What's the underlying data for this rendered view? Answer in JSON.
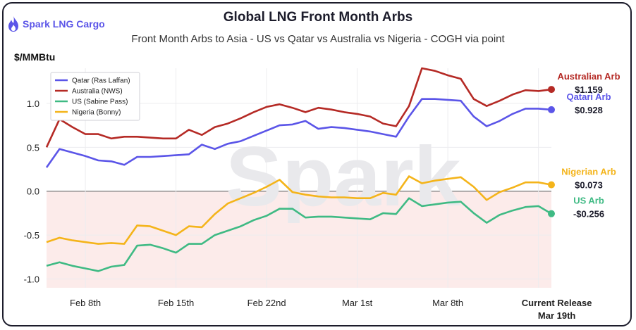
{
  "brand": {
    "name": "Spark LNG Cargo",
    "icon": "flame-icon",
    "color": "#5b55e8"
  },
  "watermark": "Spark",
  "chart_data": {
    "type": "line",
    "title": "Global LNG Front Month Arbs",
    "subtitle": "Front Month Arbs to Asia - US vs Qatar vs Australia vs Nigeria - COGH via point",
    "ylabel": "$/MMBtu",
    "ylim": [
      -1.1,
      1.4
    ],
    "yticks": [
      1.0,
      0.5,
      0.0,
      -0.5,
      -1.0
    ],
    "ytick_labels": [
      "1.0",
      "0.5",
      "0.0",
      "-0.5",
      "-1.0"
    ],
    "xlim": [
      0,
      39
    ],
    "xticks": [
      {
        "x": 3,
        "label": "Feb 8th"
      },
      {
        "x": 10,
        "label": "Feb 15th"
      },
      {
        "x": 17,
        "label": "Feb 22nd"
      },
      {
        "x": 24,
        "label": "Mar 1st"
      },
      {
        "x": 31,
        "label": "Mar 8th"
      },
      {
        "x": 38,
        "label": "Current Release"
      }
    ],
    "xtick_extra": "Mar 19th",
    "grid": true,
    "legend_position": "top-left",
    "x": [
      0,
      1,
      2,
      3,
      4,
      5,
      6,
      7,
      8,
      9,
      10,
      11,
      12,
      13,
      14,
      15,
      16,
      17,
      18,
      19,
      20,
      21,
      22,
      23,
      24,
      25,
      26,
      27,
      28,
      29,
      30,
      31,
      32,
      33,
      34,
      35,
      36,
      37,
      38,
      39
    ],
    "series": [
      {
        "name": "Qatar (Ras Laffan)",
        "color": "#5b55e8",
        "end_label": "Qatari Arb",
        "end_value": "$0.928",
        "values": [
          0.27,
          0.48,
          0.44,
          0.4,
          0.35,
          0.34,
          0.3,
          0.39,
          0.39,
          0.4,
          0.41,
          0.42,
          0.53,
          0.48,
          0.54,
          0.57,
          0.63,
          0.69,
          0.75,
          0.76,
          0.8,
          0.71,
          0.73,
          0.72,
          0.7,
          0.68,
          0.65,
          0.62,
          0.85,
          1.05,
          1.05,
          1.04,
          1.03,
          0.85,
          0.74,
          0.8,
          0.88,
          0.94,
          0.94,
          0.928
        ]
      },
      {
        "name": "Australia (NWS)",
        "color": "#b52a25",
        "end_label": "Australian Arb",
        "end_value": "$1.159",
        "values": [
          0.5,
          0.82,
          0.73,
          0.65,
          0.65,
          0.6,
          0.62,
          0.62,
          0.61,
          0.6,
          0.6,
          0.7,
          0.64,
          0.73,
          0.77,
          0.83,
          0.9,
          0.96,
          0.99,
          0.95,
          0.9,
          0.95,
          0.93,
          0.9,
          0.88,
          0.85,
          0.77,
          0.74,
          0.97,
          1.4,
          1.37,
          1.32,
          1.28,
          1.05,
          0.97,
          1.03,
          1.1,
          1.15,
          1.14,
          1.159
        ]
      },
      {
        "name": "US (Sabine Pass)",
        "color": "#3fba84",
        "end_label": "US Arb",
        "end_value": "-$0.256",
        "values": [
          -0.85,
          -0.81,
          -0.85,
          -0.88,
          -0.91,
          -0.86,
          -0.84,
          -0.62,
          -0.61,
          -0.65,
          -0.7,
          -0.6,
          -0.6,
          -0.5,
          -0.45,
          -0.4,
          -0.33,
          -0.28,
          -0.2,
          -0.2,
          -0.3,
          -0.29,
          -0.29,
          -0.3,
          -0.31,
          -0.32,
          -0.25,
          -0.26,
          -0.08,
          -0.17,
          -0.15,
          -0.13,
          -0.12,
          -0.25,
          -0.36,
          -0.27,
          -0.22,
          -0.18,
          -0.17,
          -0.256
        ]
      },
      {
        "name": "Nigeria (Bonny)",
        "color": "#f4b41a",
        "end_label": "Nigerian Arb",
        "end_value": "$0.073",
        "values": [
          -0.58,
          -0.53,
          -0.56,
          -0.58,
          -0.6,
          -0.59,
          -0.6,
          -0.39,
          -0.4,
          -0.45,
          -0.5,
          -0.4,
          -0.41,
          -0.26,
          -0.14,
          -0.08,
          -0.02,
          0.05,
          0.13,
          -0.01,
          -0.04,
          -0.06,
          -0.07,
          -0.07,
          -0.08,
          -0.08,
          -0.02,
          -0.04,
          0.17,
          0.09,
          0.12,
          0.14,
          0.16,
          0.05,
          -0.1,
          -0.01,
          0.04,
          0.1,
          0.1,
          0.073
        ]
      }
    ]
  }
}
